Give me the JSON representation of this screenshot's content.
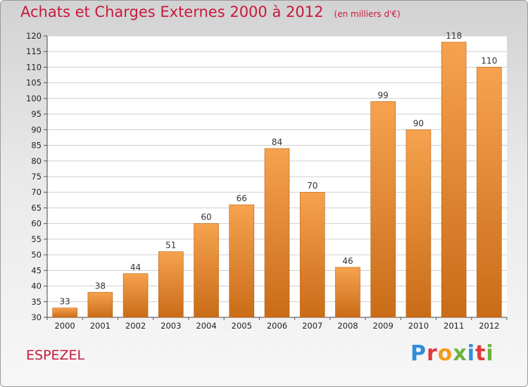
{
  "header": {
    "title": "Achats et Charges Externes 2000 à 2012",
    "subtitle": "(en milliers d'€)"
  },
  "footer": {
    "commune": "ESPEZEL",
    "brand": "Proxiti",
    "brand_colors": [
      "#2f8fd8",
      "#e03a3a",
      "#f29b1d",
      "#6db33f",
      "#2f8fd8",
      "#e03a3a",
      "#6db33f"
    ]
  },
  "colors": {
    "bar_light": "#f6a24e",
    "bar_dark": "#c96c18",
    "title": "#c8193c",
    "grid": "#cfcfcf"
  },
  "chart_data": {
    "type": "bar",
    "title": "Achats et Charges Externes 2000 à 2012",
    "subtitle": "(en milliers d'€)",
    "categories": [
      "2000",
      "2001",
      "2002",
      "2003",
      "2004",
      "2005",
      "2006",
      "2007",
      "2008",
      "2009",
      "2010",
      "2011",
      "2012"
    ],
    "values": [
      33,
      38,
      44,
      51,
      60,
      66,
      84,
      70,
      46,
      99,
      90,
      118,
      110
    ],
    "data_labels": [
      "33",
      "38",
      "44",
      "51",
      "60",
      "66",
      "84",
      "70",
      "46",
      "99",
      "90",
      "118",
      "110"
    ],
    "yticks": [
      30,
      35,
      40,
      45,
      50,
      55,
      60,
      65,
      70,
      75,
      80,
      85,
      90,
      95,
      100,
      105,
      110,
      115,
      120
    ],
    "ylim": [
      30,
      120
    ],
    "grid": true,
    "xlabel": "",
    "ylabel": ""
  }
}
